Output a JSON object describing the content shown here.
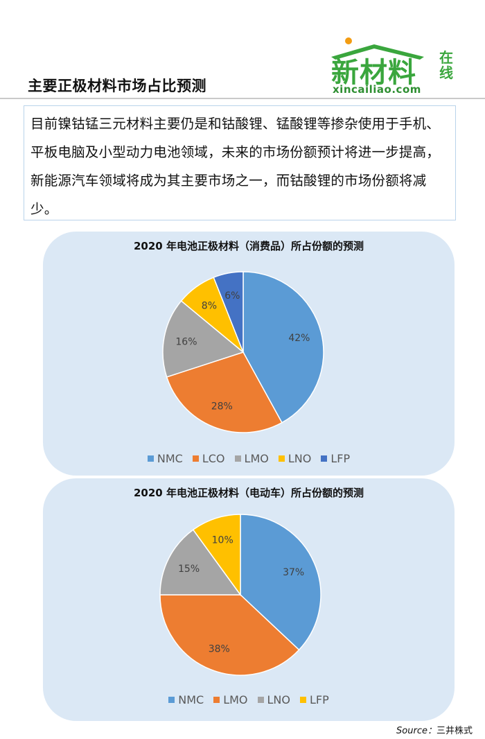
{
  "header": {
    "title": "主要正极材料市场占比预测",
    "logo_text_main": "新材料",
    "logo_text_side": "在线",
    "logo_url": "xincailiao.com"
  },
  "intro": {
    "text": "目前镍钴锰三元材料主要仍是和钴酸锂、锰酸锂等掺杂使用于手机、平板电脑及小型动力电池领域，未来的市场份额预计将进一步提高，新能源汽车领域将成为其主要市场之一，而钴酸锂的市场份额将减少。"
  },
  "colors": {
    "NMC": "#5b9bd5",
    "LCO": "#ed7d31",
    "LMO": "#a5a5a5",
    "LNO": "#ffc000",
    "LFP": "#4472c4",
    "panel": "#dbe8f5",
    "logo_green": "#3aa63d"
  },
  "chart_data": [
    {
      "type": "pie",
      "title": "2020 年电池正极材料（消费品）所占份额的预测",
      "categories": [
        "NMC",
        "LCO",
        "LMO",
        "LNO",
        "LFP"
      ],
      "values": [
        42,
        28,
        16,
        8,
        6
      ],
      "labels": [
        "42%",
        "28%",
        "16%",
        "8%",
        "6%"
      ],
      "legend_position": "bottom"
    },
    {
      "type": "pie",
      "title": "2020 年电池正极材料（电动车）所占份额的预测",
      "categories": [
        "NMC",
        "LMO",
        "LNO",
        "LFP"
      ],
      "values": [
        37,
        38,
        15,
        10
      ],
      "labels": [
        "37%",
        "38%",
        "15%",
        "10%"
      ],
      "colors": [
        "#5b9bd5",
        "#ed7d31",
        "#a5a5a5",
        "#ffc000"
      ],
      "legend_position": "bottom"
    }
  ],
  "footer": {
    "source_label": "Source：",
    "source_value": "三井株式"
  }
}
